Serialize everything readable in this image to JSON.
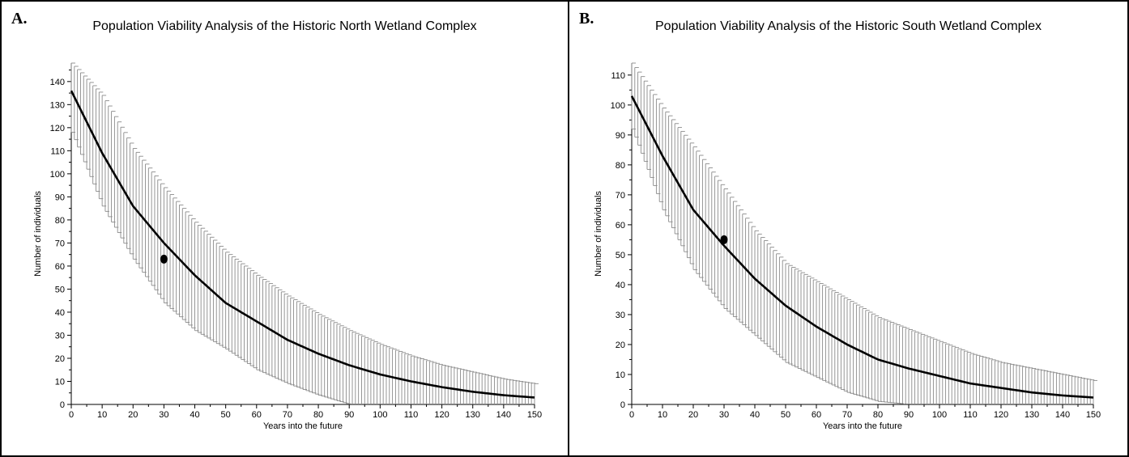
{
  "panels": [
    {
      "letter": "A.",
      "title": "Population Viability Analysis of the Historic North Wetland Complex",
      "xlabel": "Years into the future",
      "ylabel": "Number of individuals"
    },
    {
      "letter": "B.",
      "title": "Population Viability Analysis of the Historic South Wetland Complex",
      "xlabel": "Years into the future",
      "ylabel": "Number of individuals"
    }
  ],
  "chart_data": [
    {
      "type": "line",
      "title": "Population Viability Analysis of the Historic North Wetland Complex",
      "xlabel": "Years into the future",
      "ylabel": "Number of individuals",
      "xlim": [
        0,
        150
      ],
      "ylim": [
        0,
        148
      ],
      "xticks": [
        0,
        10,
        20,
        30,
        40,
        50,
        60,
        70,
        80,
        90,
        100,
        110,
        120,
        130,
        140,
        150
      ],
      "yticks": [
        0,
        10,
        20,
        30,
        40,
        50,
        60,
        70,
        80,
        90,
        100,
        110,
        120,
        130,
        140
      ],
      "series": [
        {
          "x": [
            0,
            10,
            20,
            30,
            40,
            50,
            60,
            70,
            80,
            90,
            100,
            110,
            120,
            130,
            140,
            150
          ],
          "mean": [
            136,
            109,
            86,
            70,
            56,
            44,
            36,
            28,
            22,
            17,
            13,
            10,
            7.5,
            5.5,
            4,
            3
          ],
          "upper": [
            148,
            134,
            111,
            94,
            79,
            66,
            56,
            47,
            39,
            32,
            26,
            21,
            17,
            14,
            11,
            9
          ],
          "lower": [
            118,
            86,
            63,
            44,
            32,
            24,
            15,
            9,
            4,
            0,
            0,
            0,
            0,
            0,
            0,
            0
          ]
        }
      ],
      "observed_point": {
        "x": 30,
        "y": 63
      },
      "grid": false
    },
    {
      "type": "line",
      "title": "Population Viability Analysis of the Historic South Wetland Complex",
      "xlabel": "Years into the future",
      "ylabel": "Number of individuals",
      "xlim": [
        0,
        150
      ],
      "ylim": [
        0,
        114
      ],
      "xticks": [
        0,
        10,
        20,
        30,
        40,
        50,
        60,
        70,
        80,
        90,
        100,
        110,
        120,
        130,
        140,
        150
      ],
      "yticks": [
        0,
        10,
        20,
        30,
        40,
        50,
        60,
        70,
        80,
        90,
        100,
        110
      ],
      "series": [
        {
          "x": [
            0,
            10,
            20,
            30,
            40,
            50,
            60,
            70,
            80,
            90,
            100,
            110,
            120,
            130,
            140,
            150
          ],
          "mean": [
            103,
            83,
            65,
            53,
            42,
            33,
            26,
            20,
            15,
            12,
            9.5,
            7,
            5.5,
            4,
            3,
            2.3
          ],
          "upper": [
            114,
            99,
            86,
            72,
            58,
            47,
            41,
            35,
            29,
            25,
            21,
            17,
            14,
            12,
            10,
            8
          ],
          "lower": [
            92,
            65,
            45,
            32,
            23,
            14,
            9,
            4,
            1,
            0,
            0,
            0,
            0,
            0,
            0,
            0
          ]
        }
      ],
      "observed_point": {
        "x": 30,
        "y": 55
      },
      "grid": false
    }
  ]
}
